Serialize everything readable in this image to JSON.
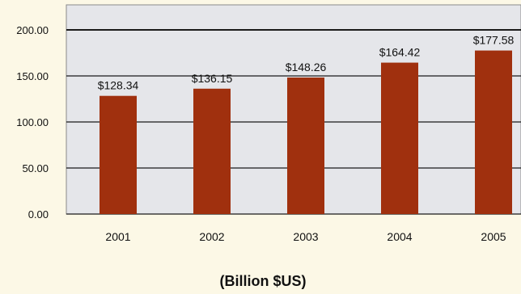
{
  "chart_data": {
    "type": "bar",
    "categories": [
      "2001",
      "2002",
      "2003",
      "2004",
      "2005"
    ],
    "values": [
      128.34,
      136.15,
      148.26,
      164.42,
      177.58
    ],
    "data_labels": [
      "$128.34",
      "$136.15",
      "$148.26",
      "$164.42",
      "$177.58"
    ],
    "yticks": [
      "0.00",
      "50.00",
      "100.00",
      "150.00",
      "200.00"
    ],
    "ylim": [
      0,
      200
    ],
    "grid": true,
    "xlabel": "(Billion $US)",
    "ylabel": "",
    "title": "",
    "colors": {
      "bar": "#a0300e",
      "plot_bg": "#e5e6ea",
      "page_bg": "#fcf8e6",
      "grid": "#1a1a1a"
    }
  }
}
